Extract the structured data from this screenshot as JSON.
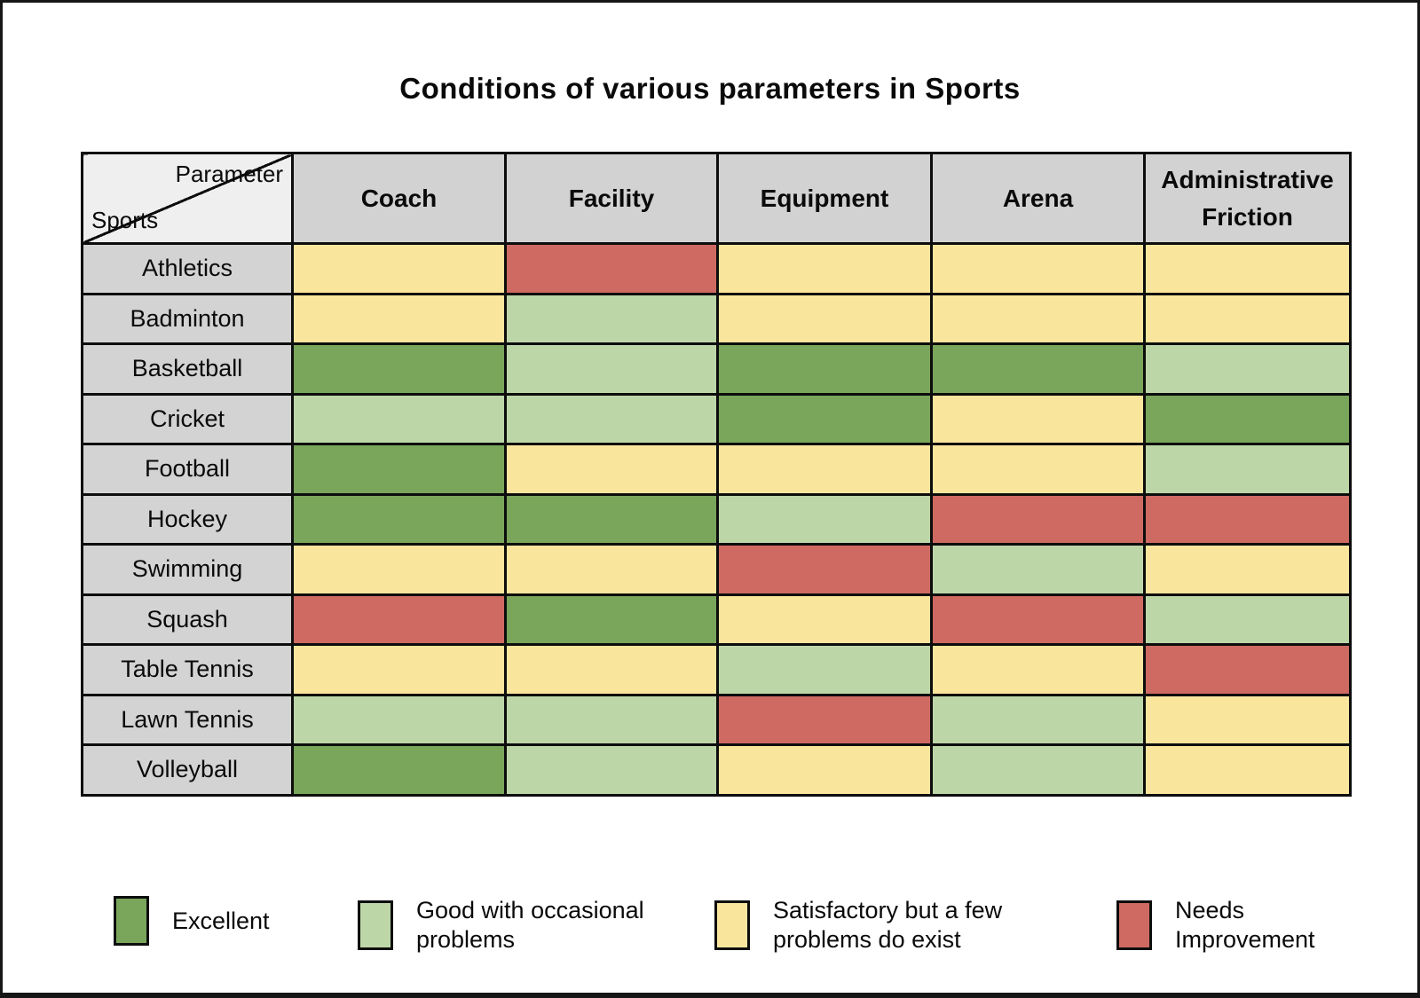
{
  "chart_data": {
    "type": "heatmap",
    "title": "Conditions of various parameters in Sports",
    "x_label_corner": "Parameter",
    "y_label_corner": "Sports",
    "columns": [
      "Coach",
      "Facility",
      "Equipment",
      "Arena",
      "Administrative Friction"
    ],
    "rows": [
      "Athletics",
      "Badminton",
      "Basketball",
      "Cricket",
      "Football",
      "Hockey",
      "Swimming",
      "Squash",
      "Table Tennis",
      "Lawn Tennis",
      "Volleyball"
    ],
    "values": [
      [
        "satisfactory",
        "needs",
        "satisfactory",
        "satisfactory",
        "satisfactory"
      ],
      [
        "satisfactory",
        "good",
        "satisfactory",
        "satisfactory",
        "satisfactory"
      ],
      [
        "excellent",
        "good",
        "excellent",
        "excellent",
        "good"
      ],
      [
        "good",
        "good",
        "excellent",
        "satisfactory",
        "excellent"
      ],
      [
        "excellent",
        "satisfactory",
        "satisfactory",
        "satisfactory",
        "good"
      ],
      [
        "excellent",
        "excellent",
        "good",
        "needs",
        "needs"
      ],
      [
        "satisfactory",
        "satisfactory",
        "needs",
        "good",
        "satisfactory"
      ],
      [
        "needs",
        "excellent",
        "satisfactory",
        "needs",
        "good"
      ],
      [
        "satisfactory",
        "satisfactory",
        "good",
        "satisfactory",
        "needs"
      ],
      [
        "good",
        "good",
        "needs",
        "good",
        "satisfactory"
      ],
      [
        "excellent",
        "good",
        "satisfactory",
        "good",
        "satisfactory"
      ]
    ],
    "legend": [
      {
        "key": "excellent",
        "label": "Excellent",
        "color": "#79a65a"
      },
      {
        "key": "good",
        "label": "Good with occasional\nproblems",
        "color": "#bdd6a8"
      },
      {
        "key": "satisfactory",
        "label": "Satisfactory but a few\nproblems do exist",
        "color": "#fae59d"
      },
      {
        "key": "needs",
        "label": "Needs\nImprovement",
        "color": "#ce6a62"
      }
    ],
    "legend_position": "bottom"
  },
  "palette": {
    "background": "#ffffff",
    "frame_border": "#161616",
    "grid_line": "#0d0d0d",
    "header_bg": "#d2d2d2",
    "row_label_bg": "#d3d3d3",
    "corner_bg": "#efefef",
    "text": "#0a0a0a"
  }
}
